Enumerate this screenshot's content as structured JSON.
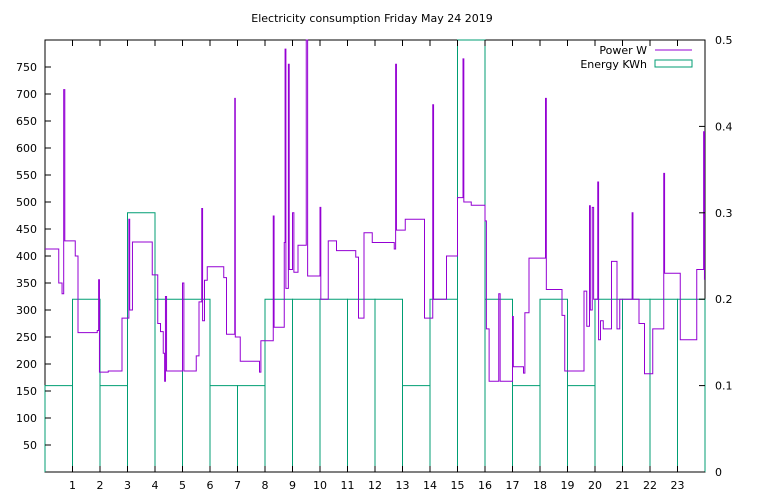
{
  "chart_data": {
    "type": "step",
    "title": "Electricity consumption Friday May 24 2019",
    "xlabel": "",
    "ylabel": "",
    "x_ticks": [
      1,
      2,
      3,
      4,
      5,
      6,
      7,
      8,
      9,
      10,
      11,
      12,
      13,
      14,
      15,
      16,
      17,
      18,
      19,
      20,
      21,
      22,
      23
    ],
    "xlim": [
      0,
      24
    ],
    "ylim_left": [
      0,
      800
    ],
    "y_ticks_left": [
      50,
      100,
      150,
      200,
      250,
      300,
      350,
      400,
      450,
      500,
      550,
      600,
      650,
      700,
      750
    ],
    "ylim_right": [
      0,
      0.5
    ],
    "y_ticks_right": [
      "0",
      "0.1",
      "0.2",
      "0.3",
      "0.4",
      "0.5"
    ],
    "grid": false,
    "legend_position": "top-right",
    "colors": {
      "power": "#9400d3",
      "energy": "#009e73"
    },
    "series": [
      {
        "name": "Power W",
        "axis": "left",
        "style": "step-line",
        "points": [
          [
            0.0,
            413
          ],
          [
            0.5,
            413
          ],
          [
            0.5,
            350
          ],
          [
            0.62,
            350
          ],
          [
            0.62,
            330
          ],
          [
            0.68,
            330
          ],
          [
            0.68,
            708
          ],
          [
            0.72,
            708
          ],
          [
            0.72,
            428
          ],
          [
            1.0,
            428
          ],
          [
            1.1,
            428
          ],
          [
            1.1,
            400
          ],
          [
            1.2,
            400
          ],
          [
            1.2,
            258
          ],
          [
            1.9,
            258
          ],
          [
            1.9,
            262
          ],
          [
            1.95,
            262
          ],
          [
            1.95,
            356
          ],
          [
            1.98,
            356
          ],
          [
            1.98,
            185
          ],
          [
            2.0,
            185
          ],
          [
            2.3,
            185
          ],
          [
            2.3,
            187
          ],
          [
            2.8,
            187
          ],
          [
            2.8,
            285
          ],
          [
            3.05,
            285
          ],
          [
            3.05,
            468
          ],
          [
            3.08,
            468
          ],
          [
            3.08,
            300
          ],
          [
            3.18,
            300
          ],
          [
            3.18,
            426
          ],
          [
            3.6,
            426
          ],
          [
            3.9,
            426
          ],
          [
            3.9,
            365
          ],
          [
            4.1,
            365
          ],
          [
            4.1,
            275
          ],
          [
            4.2,
            275
          ],
          [
            4.2,
            260
          ],
          [
            4.3,
            260
          ],
          [
            4.3,
            220
          ],
          [
            4.35,
            220
          ],
          [
            4.35,
            168
          ],
          [
            4.38,
            168
          ],
          [
            4.38,
            325
          ],
          [
            4.42,
            325
          ],
          [
            4.42,
            187
          ],
          [
            5.0,
            187
          ],
          [
            5.0,
            350
          ],
          [
            5.05,
            350
          ],
          [
            5.05,
            187
          ],
          [
            5.5,
            187
          ],
          [
            5.5,
            215
          ],
          [
            5.6,
            215
          ],
          [
            5.6,
            315
          ],
          [
            5.7,
            315
          ],
          [
            5.7,
            488
          ],
          [
            5.73,
            488
          ],
          [
            5.73,
            280
          ],
          [
            5.8,
            280
          ],
          [
            5.8,
            355
          ],
          [
            5.9,
            355
          ],
          [
            5.9,
            380
          ],
          [
            6.5,
            380
          ],
          [
            6.5,
            360
          ],
          [
            6.6,
            360
          ],
          [
            6.6,
            255
          ],
          [
            6.9,
            255
          ],
          [
            6.9,
            692
          ],
          [
            6.92,
            692
          ],
          [
            6.92,
            250
          ],
          [
            7.1,
            250
          ],
          [
            7.1,
            205
          ],
          [
            7.8,
            205
          ],
          [
            7.8,
            185
          ],
          [
            7.85,
            185
          ],
          [
            7.85,
            243
          ],
          [
            8.3,
            243
          ],
          [
            8.3,
            474
          ],
          [
            8.33,
            474
          ],
          [
            8.33,
            268
          ],
          [
            8.7,
            268
          ],
          [
            8.7,
            425
          ],
          [
            8.73,
            425
          ],
          [
            8.73,
            783
          ],
          [
            8.76,
            783
          ],
          [
            8.76,
            340
          ],
          [
            8.85,
            340
          ],
          [
            8.85,
            755
          ],
          [
            8.88,
            755
          ],
          [
            8.88,
            375
          ],
          [
            9.0,
            375
          ],
          [
            9.0,
            480
          ],
          [
            9.05,
            480
          ],
          [
            9.05,
            370
          ],
          [
            9.2,
            370
          ],
          [
            9.2,
            420
          ],
          [
            9.5,
            420
          ],
          [
            9.5,
            800
          ],
          [
            9.55,
            800
          ],
          [
            9.55,
            363
          ],
          [
            10.0,
            363
          ],
          [
            10.0,
            490
          ],
          [
            10.03,
            490
          ],
          [
            10.03,
            320
          ],
          [
            10.3,
            320
          ],
          [
            10.3,
            428
          ],
          [
            10.6,
            428
          ],
          [
            10.6,
            410
          ],
          [
            11.3,
            410
          ],
          [
            11.3,
            398
          ],
          [
            11.4,
            398
          ],
          [
            11.4,
            285
          ],
          [
            11.6,
            285
          ],
          [
            11.6,
            443
          ],
          [
            11.9,
            443
          ],
          [
            11.9,
            425
          ],
          [
            12.7,
            425
          ],
          [
            12.7,
            413
          ],
          [
            12.75,
            413
          ],
          [
            12.75,
            755
          ],
          [
            12.78,
            755
          ],
          [
            12.78,
            448
          ],
          [
            13.1,
            448
          ],
          [
            13.1,
            468
          ],
          [
            13.8,
            468
          ],
          [
            13.8,
            285
          ],
          [
            14.1,
            285
          ],
          [
            14.1,
            680
          ],
          [
            14.13,
            680
          ],
          [
            14.13,
            320
          ],
          [
            14.6,
            320
          ],
          [
            14.6,
            400
          ],
          [
            15.0,
            400
          ],
          [
            15.0,
            508
          ],
          [
            15.2,
            508
          ],
          [
            15.2,
            765
          ],
          [
            15.23,
            765
          ],
          [
            15.23,
            500
          ],
          [
            15.5,
            500
          ],
          [
            15.5,
            494
          ],
          [
            16.0,
            494
          ],
          [
            16.0,
            465
          ],
          [
            16.05,
            465
          ],
          [
            16.05,
            265
          ],
          [
            16.15,
            265
          ],
          [
            16.15,
            168
          ],
          [
            16.5,
            168
          ],
          [
            16.5,
            330
          ],
          [
            16.55,
            330
          ],
          [
            16.55,
            168
          ],
          [
            17.0,
            168
          ],
          [
            17.0,
            288
          ],
          [
            17.03,
            288
          ],
          [
            17.03,
            195
          ],
          [
            17.4,
            195
          ],
          [
            17.4,
            183
          ],
          [
            17.45,
            183
          ],
          [
            17.45,
            295
          ],
          [
            17.6,
            295
          ],
          [
            17.6,
            396
          ],
          [
            18.2,
            396
          ],
          [
            18.2,
            692
          ],
          [
            18.23,
            692
          ],
          [
            18.23,
            338
          ],
          [
            18.8,
            338
          ],
          [
            18.8,
            290
          ],
          [
            18.9,
            290
          ],
          [
            18.9,
            187
          ],
          [
            19.6,
            187
          ],
          [
            19.6,
            335
          ],
          [
            19.7,
            335
          ],
          [
            19.7,
            270
          ],
          [
            19.8,
            270
          ],
          [
            19.8,
            493
          ],
          [
            19.83,
            493
          ],
          [
            19.83,
            300
          ],
          [
            19.9,
            300
          ],
          [
            19.9,
            490
          ],
          [
            19.95,
            490
          ],
          [
            19.95,
            320
          ],
          [
            20.1,
            320
          ],
          [
            20.1,
            537
          ],
          [
            20.13,
            537
          ],
          [
            20.13,
            245
          ],
          [
            20.2,
            245
          ],
          [
            20.2,
            280
          ],
          [
            20.3,
            280
          ],
          [
            20.3,
            265
          ],
          [
            20.6,
            265
          ],
          [
            20.6,
            390
          ],
          [
            20.8,
            390
          ],
          [
            20.8,
            265
          ],
          [
            20.9,
            265
          ],
          [
            20.9,
            320
          ],
          [
            21.35,
            320
          ],
          [
            21.35,
            480
          ],
          [
            21.38,
            480
          ],
          [
            21.38,
            320
          ],
          [
            21.6,
            320
          ],
          [
            21.6,
            275
          ],
          [
            21.8,
            275
          ],
          [
            21.8,
            182
          ],
          [
            22.1,
            182
          ],
          [
            22.1,
            265
          ],
          [
            22.5,
            265
          ],
          [
            22.5,
            553
          ],
          [
            22.53,
            553
          ],
          [
            22.53,
            368
          ],
          [
            23.1,
            368
          ],
          [
            23.1,
            245
          ],
          [
            23.7,
            245
          ],
          [
            23.7,
            375
          ],
          [
            23.95,
            375
          ],
          [
            23.95,
            630
          ],
          [
            23.98,
            630
          ],
          [
            23.98,
            357
          ],
          [
            24.0,
            357
          ]
        ]
      },
      {
        "name": "Energy KWh",
        "axis": "right",
        "style": "histeps",
        "bin_width": 1,
        "x": [
          0.5,
          1.5,
          2.5,
          3.5,
          4.5,
          5.5,
          6.5,
          7.5,
          8.5,
          9.5,
          10.5,
          11.5,
          12.5,
          13.5,
          14.5,
          15.5,
          16.5,
          17.5,
          18.5,
          19.5,
          20.5,
          21.5,
          22.5,
          23.5
        ],
        "values": [
          0.1,
          0.2,
          0.1,
          0.3,
          0.2,
          0.2,
          0.1,
          0.1,
          0.2,
          0.2,
          0.2,
          0.2,
          0.2,
          0.1,
          0.2,
          0.5,
          0.2,
          0.1,
          0.2,
          0.1,
          0.2,
          0.2,
          0.2,
          0.2
        ]
      }
    ]
  }
}
